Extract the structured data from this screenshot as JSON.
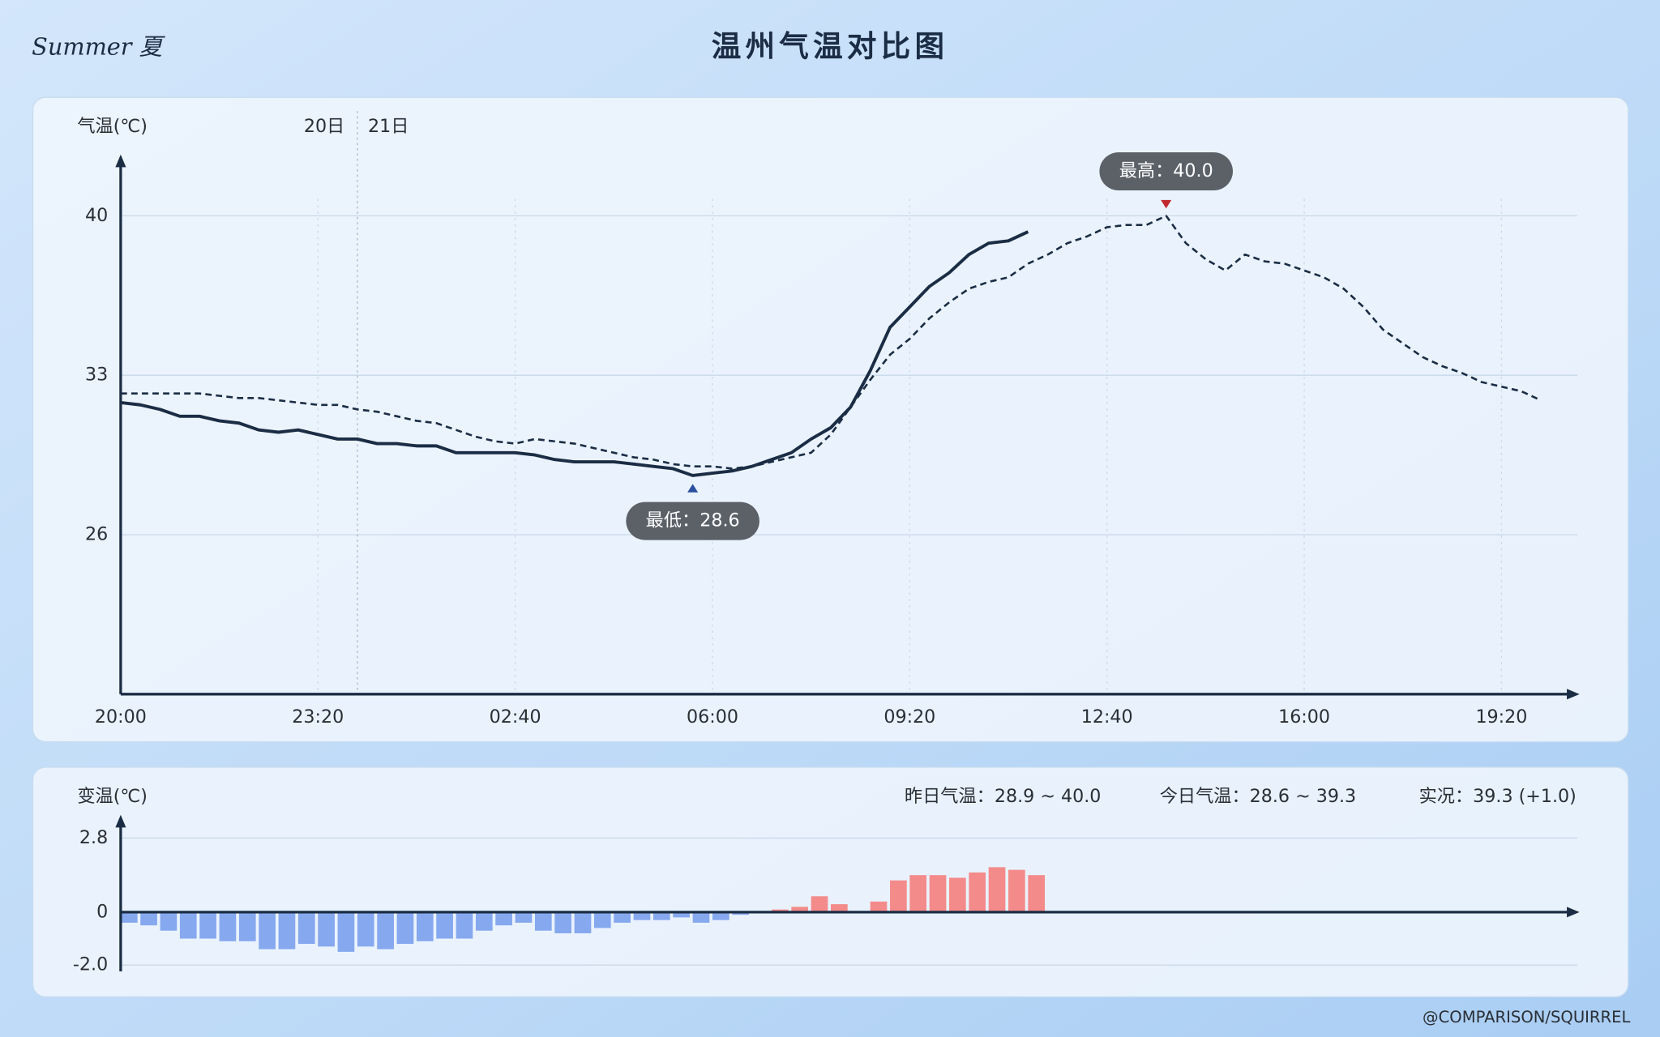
{
  "header": {
    "logo": "Summer 夏",
    "title": "温州气温对比图"
  },
  "footer": "@COMPARISON/SQUIRREL",
  "chart_data": [
    {
      "type": "line",
      "ylabel": "气温(℃)",
      "xlim": [
        0,
        1477
      ],
      "ylim": [
        19,
        42.6
      ],
      "xticks": [
        {
          "value": 0,
          "label": "20:00"
        },
        {
          "value": 200,
          "label": "23:20"
        },
        {
          "value": 400,
          "label": "02:40"
        },
        {
          "value": 600,
          "label": "06:00"
        },
        {
          "value": 800,
          "label": "09:20"
        },
        {
          "value": 1000,
          "label": "12:40"
        },
        {
          "value": 1200,
          "label": "16:00"
        },
        {
          "value": 1400,
          "label": "19:20"
        }
      ],
      "yticks": [
        26,
        33,
        40
      ],
      "grid": true,
      "day_divider": {
        "x": 240,
        "labels": [
          "20日",
          "21日"
        ]
      },
      "x": [
        0,
        20,
        40,
        60,
        80,
        100,
        120,
        140,
        160,
        180,
        200,
        220,
        240,
        260,
        280,
        300,
        320,
        340,
        360,
        380,
        400,
        420,
        440,
        460,
        480,
        500,
        520,
        540,
        560,
        580,
        600,
        620,
        640,
        660,
        680,
        700,
        720,
        740,
        760,
        780,
        800,
        820,
        840,
        860,
        880,
        900,
        920,
        940,
        960,
        980,
        1000,
        1020,
        1040,
        1060,
        1080,
        1100,
        1120,
        1140,
        1160,
        1180,
        1200,
        1220,
        1240,
        1260,
        1280,
        1300,
        1320,
        1340,
        1360,
        1380,
        1400,
        1420,
        1440
      ],
      "series": [
        {
          "color": "#1b2d44",
          "style": "dashed",
          "values": [
            32.2,
            32.2,
            32.2,
            32.2,
            32.2,
            32.1,
            32.0,
            32.0,
            31.9,
            31.8,
            31.7,
            31.7,
            31.5,
            31.4,
            31.2,
            31.0,
            30.9,
            30.6,
            30.3,
            30.1,
            30.0,
            30.2,
            30.1,
            30.0,
            29.8,
            29.6,
            29.4,
            29.3,
            29.1,
            29.0,
            29.0,
            28.9,
            29.0,
            29.2,
            29.4,
            29.6,
            30.4,
            31.6,
            32.8,
            33.9,
            34.6,
            35.5,
            36.2,
            36.8,
            37.1,
            37.3,
            37.9,
            38.3,
            38.8,
            39.1,
            39.5,
            39.6,
            39.6,
            40.0,
            38.8,
            38.1,
            37.6,
            38.3,
            38.0,
            37.9,
            37.6,
            37.3,
            36.8,
            36.0,
            35.0,
            34.4,
            33.8,
            33.4,
            33.1,
            32.7,
            32.5,
            32.3,
            31.9
          ]
        },
        {
          "color": "#1b2d44",
          "style": "solid",
          "values": [
            31.8,
            31.7,
            31.5,
            31.2,
            31.2,
            31.0,
            30.9,
            30.6,
            30.5,
            30.6,
            30.4,
            30.2,
            30.2,
            30.0,
            30.0,
            29.9,
            29.9,
            29.6,
            29.6,
            29.6,
            29.6,
            29.5,
            29.3,
            29.2,
            29.2,
            29.2,
            29.1,
            29.0,
            28.9,
            28.6,
            28.7,
            28.8,
            29.0,
            29.3,
            29.6,
            30.2,
            30.7,
            31.6,
            33.2,
            35.1,
            36.0,
            36.9,
            37.5,
            38.3,
            38.8,
            38.9,
            39.3,
            null,
            null,
            null,
            null,
            null,
            null,
            null,
            null,
            null,
            null,
            null,
            null,
            null,
            null,
            null,
            null,
            null,
            null,
            null,
            null,
            null,
            null,
            null,
            null,
            null,
            null
          ]
        }
      ],
      "annotations": [
        {
          "label": "最高：40.0",
          "x": 1060,
          "y": 40.0,
          "position": "above",
          "color": "#c0282d"
        },
        {
          "label": "最低：28.6",
          "x": 580,
          "y": 28.6,
          "position": "below",
          "color": "#2a4fa0"
        }
      ]
    },
    {
      "type": "bar",
      "ylabel": "变温(℃)",
      "xlim": [
        0,
        1477
      ],
      "ylim": [
        -2.24,
        3.6
      ],
      "yticks": [
        2.8,
        0,
        {
          "value": -2,
          "label": "-2.0"
        }
      ],
      "grid": true,
      "positive_color": "#f48b8b",
      "negative_color": "#86a8ef",
      "summary": [
        "昨日气温：28.9 ~ 40.0",
        "今日气温：28.6 ~ 39.3",
        "实况：39.3 (+1.0)"
      ],
      "x": [
        0,
        20,
        40,
        60,
        80,
        100,
        120,
        140,
        160,
        180,
        200,
        220,
        240,
        260,
        280,
        300,
        320,
        340,
        360,
        380,
        400,
        420,
        440,
        460,
        480,
        500,
        520,
        540,
        560,
        580,
        600,
        620,
        640,
        660,
        680,
        700,
        720,
        740,
        760,
        780,
        800,
        820,
        840,
        860,
        880,
        900,
        920
      ],
      "values": [
        -0.4,
        -0.5,
        -0.7,
        -1.0,
        -1.0,
        -1.1,
        -1.1,
        -1.4,
        -1.4,
        -1.2,
        -1.3,
        -1.5,
        -1.3,
        -1.4,
        -1.2,
        -1.1,
        -1.0,
        -1.0,
        -0.7,
        -0.5,
        -0.4,
        -0.7,
        -0.8,
        -0.8,
        -0.6,
        -0.4,
        -0.3,
        -0.3,
        -0.2,
        -0.4,
        -0.3,
        -0.1,
        0.0,
        0.1,
        0.2,
        0.6,
        0.3,
        0.0,
        0.4,
        1.2,
        1.4,
        1.4,
        1.3,
        1.5,
        1.7,
        1.6,
        1.4
      ]
    }
  ]
}
